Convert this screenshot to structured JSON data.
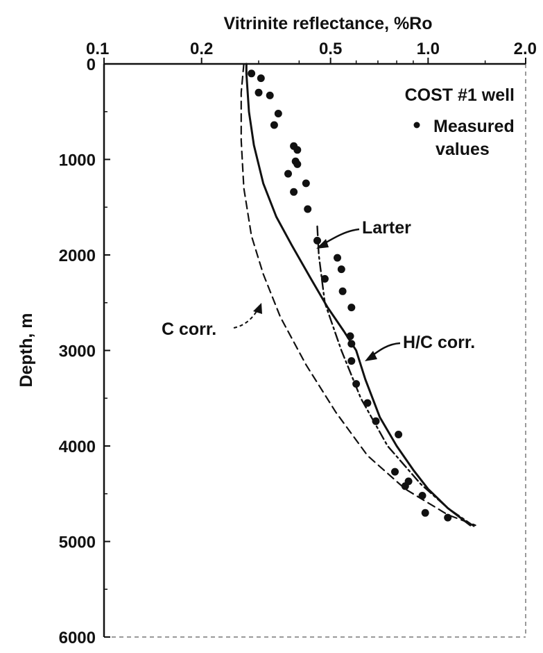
{
  "chart_data": {
    "type": "line",
    "title": "",
    "xlabel": "Vitrinite reflectance, %Ro",
    "ylabel": "Depth, m",
    "x_scale": "log",
    "xlim": [
      0.1,
      2.0
    ],
    "ylim": [
      0,
      6000
    ],
    "y_inverted": true,
    "x_axis_position": "top",
    "x_tick_labels": [
      {
        "value": 0.1,
        "label": "0.1"
      },
      {
        "value": 0.2,
        "label": "0.2"
      },
      {
        "value": 0.5,
        "label": "0.5"
      },
      {
        "value": 1.0,
        "label": "1.0"
      },
      {
        "value": 2.0,
        "label": "2.0"
      }
    ],
    "y_tick_labels": [
      {
        "value": 0,
        "label": "0"
      },
      {
        "value": 1000,
        "label": "1000"
      },
      {
        "value": 2000,
        "label": "2000"
      },
      {
        "value": 3000,
        "label": "3000"
      },
      {
        "value": 4000,
        "label": "4000"
      },
      {
        "value": 5000,
        "label": "5000"
      },
      {
        "value": 6000,
        "label": "6000"
      }
    ],
    "grid": false,
    "legend": {
      "position": "top-right",
      "title": "COST #1 well",
      "entries": [
        {
          "marker": "dot",
          "label_lines": [
            "Measured",
            "values"
          ]
        }
      ]
    },
    "scatter": {
      "name": "Measured values",
      "points": [
        [
          0.285,
          100
        ],
        [
          0.305,
          150
        ],
        [
          0.3,
          300
        ],
        [
          0.325,
          330
        ],
        [
          0.345,
          520
        ],
        [
          0.335,
          640
        ],
        [
          0.385,
          860
        ],
        [
          0.395,
          900
        ],
        [
          0.39,
          1020
        ],
        [
          0.395,
          1050
        ],
        [
          0.37,
          1150
        ],
        [
          0.385,
          1340
        ],
        [
          0.42,
          1250
        ],
        [
          0.425,
          1520
        ],
        [
          0.455,
          1850
        ],
        [
          0.525,
          2030
        ],
        [
          0.54,
          2150
        ],
        [
          0.48,
          2250
        ],
        [
          0.545,
          2380
        ],
        [
          0.58,
          2550
        ],
        [
          0.575,
          2850
        ],
        [
          0.58,
          2930
        ],
        [
          0.58,
          3110
        ],
        [
          0.6,
          3350
        ],
        [
          0.65,
          3550
        ],
        [
          0.69,
          3740
        ],
        [
          0.81,
          3880
        ],
        [
          0.79,
          4270
        ],
        [
          0.85,
          4420
        ],
        [
          0.87,
          4370
        ],
        [
          0.96,
          4520
        ],
        [
          0.98,
          4700
        ],
        [
          1.15,
          4750
        ]
      ]
    },
    "series": [
      {
        "name": "H/C corr.",
        "style": "solid",
        "points": [
          [
            0.275,
            0
          ],
          [
            0.275,
            100
          ],
          [
            0.28,
            500
          ],
          [
            0.29,
            850
          ],
          [
            0.31,
            1250
          ],
          [
            0.34,
            1600
          ],
          [
            0.38,
            1900
          ],
          [
            0.435,
            2250
          ],
          [
            0.49,
            2550
          ],
          [
            0.55,
            2800
          ],
          [
            0.6,
            3000
          ],
          [
            0.64,
            3300
          ],
          [
            0.71,
            3700
          ],
          [
            0.8,
            4000
          ],
          [
            0.9,
            4250
          ],
          [
            1.0,
            4450
          ],
          [
            1.15,
            4650
          ],
          [
            1.35,
            4830
          ]
        ]
      },
      {
        "name": "C corr.",
        "style": "dashed",
        "points": [
          [
            0.27,
            0
          ],
          [
            0.265,
            300
          ],
          [
            0.265,
            800
          ],
          [
            0.27,
            1300
          ],
          [
            0.285,
            1800
          ],
          [
            0.31,
            2200
          ],
          [
            0.35,
            2650
          ],
          [
            0.42,
            3150
          ],
          [
            0.52,
            3650
          ],
          [
            0.65,
            4100
          ],
          [
            0.85,
            4450
          ],
          [
            1.15,
            4720
          ],
          [
            1.4,
            4830
          ]
        ]
      },
      {
        "name": "Larter",
        "style": "dashdot",
        "points": [
          [
            0.455,
            1700
          ],
          [
            0.46,
            2000
          ],
          [
            0.48,
            2500
          ],
          [
            0.54,
            3000
          ],
          [
            0.62,
            3500
          ],
          [
            0.75,
            4000
          ],
          [
            0.95,
            4400
          ],
          [
            1.15,
            4650
          ],
          [
            1.4,
            4850
          ]
        ]
      }
    ],
    "annotations": [
      {
        "text": "Larter",
        "points_to": [
          0.46,
          1850
        ]
      },
      {
        "text": "H/C corr.",
        "points_to": [
          0.61,
          3080
        ]
      },
      {
        "text": "C corr.",
        "points_to": [
          0.33,
          2350
        ]
      }
    ]
  }
}
